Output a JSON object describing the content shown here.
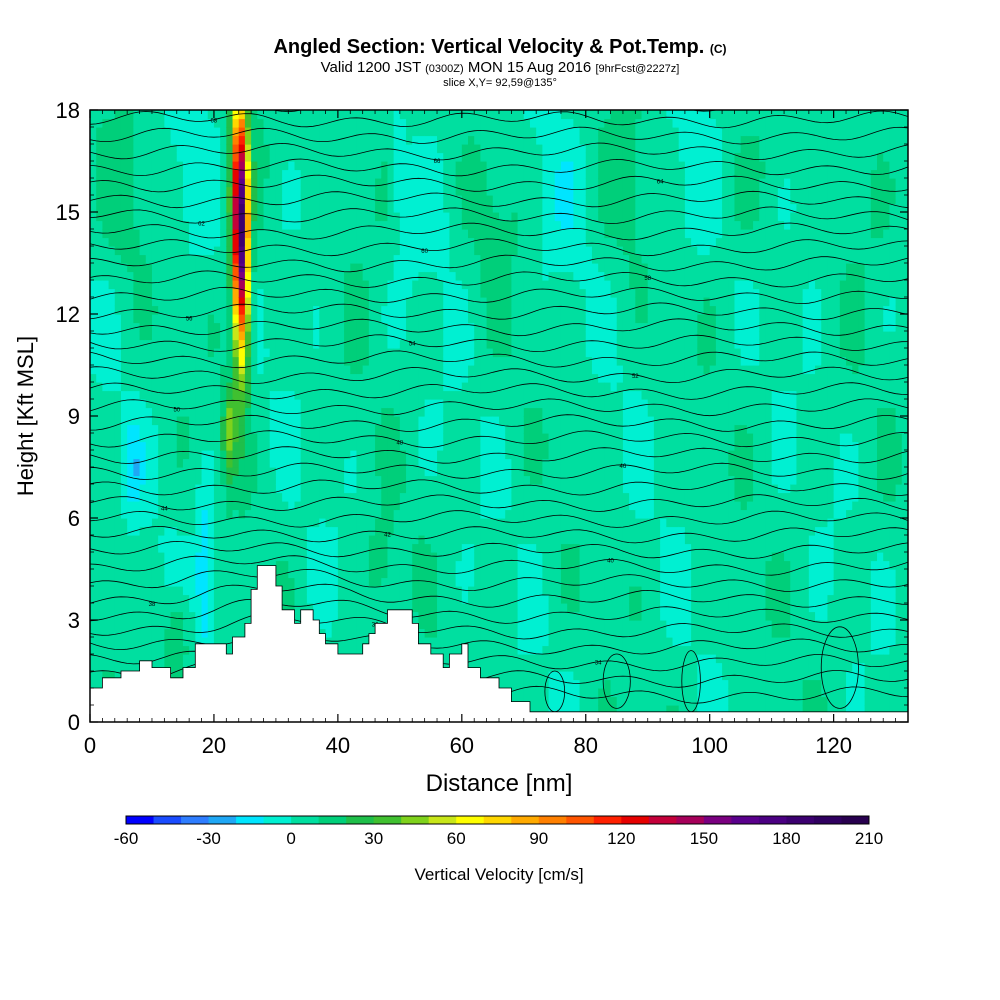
{
  "titles": {
    "main": "Angled Section: Vertical Velocity & Pot.Temp.",
    "copyright": "(C)",
    "valid_a": "Valid 1200 JST",
    "valid_utc": "(0300Z)",
    "valid_b": "MON 15 Aug 2016",
    "fcst": "[9hrFcst@2227z]",
    "slice": "slice X,Y= 92,59@135°"
  },
  "chart_data": {
    "type": "heatmap",
    "xlabel": "Distance [nm]",
    "ylabel": "Height [Kft MSL]",
    "xlim": [
      0,
      132
    ],
    "ylim": [
      0,
      18
    ],
    "x_ticks": [
      0,
      20,
      40,
      60,
      80,
      100,
      120
    ],
    "y_ticks": [
      0,
      3,
      6,
      9,
      12,
      15,
      18
    ],
    "colorbar": {
      "label": "Vertical Velocity [cm/s]",
      "min": -60,
      "max": 210,
      "step": 10,
      "tick_labels": [
        "-60",
        "-30",
        "0",
        "30",
        "60",
        "90",
        "120",
        "150",
        "180",
        "210"
      ],
      "colors": [
        "#0000ff",
        "#1a4cff",
        "#2e7dff",
        "#1fa7f5",
        "#00e5ff",
        "#00f0d2",
        "#00dfa0",
        "#00cf7a",
        "#1fbf4a",
        "#40c030",
        "#7fd21c",
        "#c8e619",
        "#ffff00",
        "#ffd700",
        "#ffaa00",
        "#ff8000",
        "#ff5500",
        "#ff2000",
        "#e60000",
        "#c4003a",
        "#a6005a",
        "#7a0080",
        "#5a008c",
        "#4b0082",
        "#3c0070",
        "#300060",
        "#28004f"
      ]
    },
    "terrain_top_kft": [
      [
        0,
        1.0
      ],
      [
        2,
        1.0
      ],
      [
        2,
        1.3
      ],
      [
        5,
        1.3
      ],
      [
        5,
        1.5
      ],
      [
        8,
        1.5
      ],
      [
        8,
        1.8
      ],
      [
        10,
        1.8
      ],
      [
        10,
        1.6
      ],
      [
        13,
        1.6
      ],
      [
        13,
        1.3
      ],
      [
        15,
        1.3
      ],
      [
        15,
        1.6
      ],
      [
        17,
        1.6
      ],
      [
        17,
        2.3
      ],
      [
        22,
        2.3
      ],
      [
        22,
        2.0
      ],
      [
        23,
        2.0
      ],
      [
        23,
        2.5
      ],
      [
        25,
        2.5
      ],
      [
        25,
        2.9
      ],
      [
        26,
        2.9
      ],
      [
        26,
        3.9
      ],
      [
        27,
        3.9
      ],
      [
        27,
        4.6
      ],
      [
        30,
        4.6
      ],
      [
        30,
        4.0
      ],
      [
        31,
        4.0
      ],
      [
        31,
        3.3
      ],
      [
        33,
        3.3
      ],
      [
        33,
        2.9
      ],
      [
        34,
        2.9
      ],
      [
        34,
        3.3
      ],
      [
        36,
        3.3
      ],
      [
        36,
        3.0
      ],
      [
        37,
        3.0
      ],
      [
        37,
        2.6
      ],
      [
        38,
        2.6
      ],
      [
        38,
        2.3
      ],
      [
        40,
        2.3
      ],
      [
        40,
        2.0
      ],
      [
        44,
        2.0
      ],
      [
        44,
        2.3
      ],
      [
        45,
        2.3
      ],
      [
        45,
        2.6
      ],
      [
        46,
        2.6
      ],
      [
        46,
        2.9
      ],
      [
        48,
        2.9
      ],
      [
        48,
        3.3
      ],
      [
        52,
        3.3
      ],
      [
        52,
        2.9
      ],
      [
        53,
        2.9
      ],
      [
        53,
        2.3
      ],
      [
        55,
        2.3
      ],
      [
        55,
        2.0
      ],
      [
        57,
        2.0
      ],
      [
        57,
        1.6
      ],
      [
        58,
        1.6
      ],
      [
        58,
        2.0
      ],
      [
        60,
        2.0
      ],
      [
        60,
        2.3
      ],
      [
        61,
        2.3
      ],
      [
        61,
        1.6
      ],
      [
        63,
        1.6
      ],
      [
        63,
        1.3
      ],
      [
        66,
        1.3
      ],
      [
        66,
        1.0
      ],
      [
        68,
        1.0
      ],
      [
        68,
        0.6
      ],
      [
        71,
        0.6
      ],
      [
        71,
        0.3
      ],
      [
        132,
        0.3
      ]
    ],
    "theta_labels": [
      "32",
      "34",
      "36",
      "38",
      "40",
      "42",
      "44",
      "46",
      "48",
      "50",
      "52",
      "54",
      "56",
      "58",
      "60",
      "62",
      "64",
      "66",
      "68"
    ]
  }
}
